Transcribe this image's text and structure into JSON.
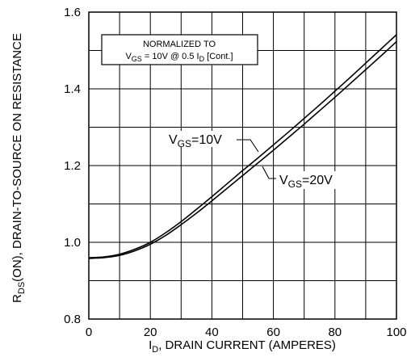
{
  "chart_data": {
    "type": "line",
    "title": "",
    "xlabel": {
      "main": "I",
      "sub": "D",
      "rest": ", DRAIN CURRENT (AMPERES)"
    },
    "ylabel": {
      "main": "R",
      "sub": "DS",
      "rest": "(ON), DRAIN-TO-SOURCE ON RESISTANCE"
    },
    "xlim": [
      0,
      100
    ],
    "ylim": [
      0.8,
      1.6
    ],
    "x_ticks": [
      "0",
      "20",
      "40",
      "60",
      "80",
      "100"
    ],
    "y_ticks": [
      "0.8",
      "1.0",
      "1.2",
      "1.4",
      "1.6"
    ],
    "grid": true,
    "annotation": {
      "line1": "NORMALIZED TO",
      "line2_a": "V",
      "line2_sub": "GS",
      "line2_b": " = 10V  @  0.5  I",
      "line2_sub2": "D",
      "line2_c": " [Cont.]"
    },
    "series": [
      {
        "name": "VGS=10V",
        "label_main": "V",
        "label_sub": "GS",
        "label_rest": "=10V",
        "color": "#000000",
        "x": [
          0,
          5,
          10,
          15,
          20,
          25,
          30,
          35,
          40,
          45,
          50,
          55,
          60,
          65,
          70,
          75,
          80,
          85,
          90,
          95,
          100
        ],
        "y": [
          0.96,
          0.962,
          0.969,
          0.982,
          1.0,
          1.025,
          1.054,
          1.086,
          1.119,
          1.153,
          1.187,
          1.22,
          1.254,
          1.288,
          1.323,
          1.358,
          1.394,
          1.43,
          1.467,
          1.504,
          1.541
        ]
      },
      {
        "name": "VGS=20V",
        "label_main": "V",
        "label_sub": "GS",
        "label_rest": "=20V",
        "color": "#000000",
        "x": [
          0,
          5,
          10,
          15,
          20,
          25,
          30,
          35,
          40,
          45,
          50,
          55,
          60,
          65,
          70,
          75,
          80,
          85,
          90,
          95,
          100
        ],
        "y": [
          0.958,
          0.96,
          0.966,
          0.978,
          0.995,
          1.018,
          1.046,
          1.076,
          1.108,
          1.141,
          1.174,
          1.207,
          1.24,
          1.274,
          1.308,
          1.343,
          1.378,
          1.414,
          1.45,
          1.486,
          1.523
        ]
      }
    ]
  }
}
